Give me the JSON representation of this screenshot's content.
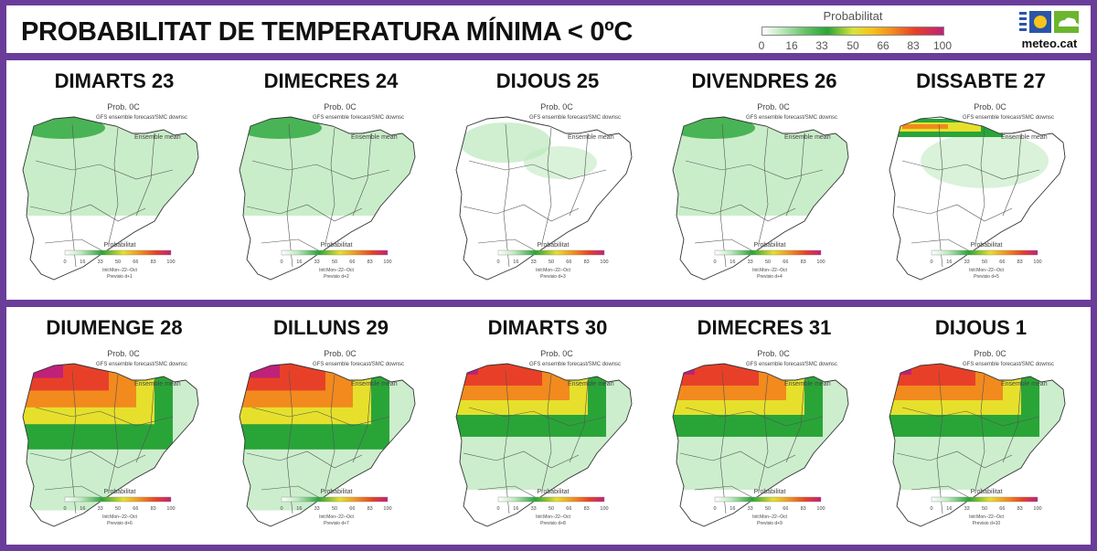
{
  "header": {
    "title": "PROBABILITAT DE TEMPERATURA MÍNIMA < 0ºC",
    "legend_title": "Probabilitat",
    "legend_ticks": [
      "0",
      "16",
      "33",
      "50",
      "66",
      "83",
      "100"
    ],
    "logo_text": "meteo.cat"
  },
  "map_labels": {
    "prob": "Prob. 0C",
    "source": "GFS ensemble forecast/SMC downsc",
    "mean": "Ensemble mean",
    "scale_title": "Probabilitat",
    "init": "Init:Mon--22--Oct"
  },
  "colors": {
    "frame": "#6a3d9a",
    "light_green": "#bfeac0",
    "green": "#29a538",
    "yellow": "#e6e02c",
    "orange": "#f28a1e",
    "red": "#e84028",
    "magenta": "#c0217a"
  },
  "days": [
    {
      "label": "DIMARTS 23",
      "forecast": "Previsio d+1",
      "level": 1
    },
    {
      "label": "DIMECRES 24",
      "forecast": "Previsio d+2",
      "level": 1
    },
    {
      "label": "DIJOUS 25",
      "forecast": "Previsio d+3",
      "level": 0
    },
    {
      "label": "DIVENDRES 26",
      "forecast": "Previsio d+4",
      "level": 1
    },
    {
      "label": "DISSABTE 27",
      "forecast": "Previsio d+5",
      "level": 2
    },
    {
      "label": "DIUMENGE 28",
      "forecast": "Previsio d+6",
      "level": 4
    },
    {
      "label": "DILLUNS 29",
      "forecast": "Previsio d+7",
      "level": 4
    },
    {
      "label": "DIMARTS 30",
      "forecast": "Previsio d+8",
      "level": 3
    },
    {
      "label": "DIMECRES 31",
      "forecast": "Previsio d+9",
      "level": 3
    },
    {
      "label": "DIJOUS 1",
      "forecast": "Previsio d+10",
      "level": 3
    }
  ]
}
